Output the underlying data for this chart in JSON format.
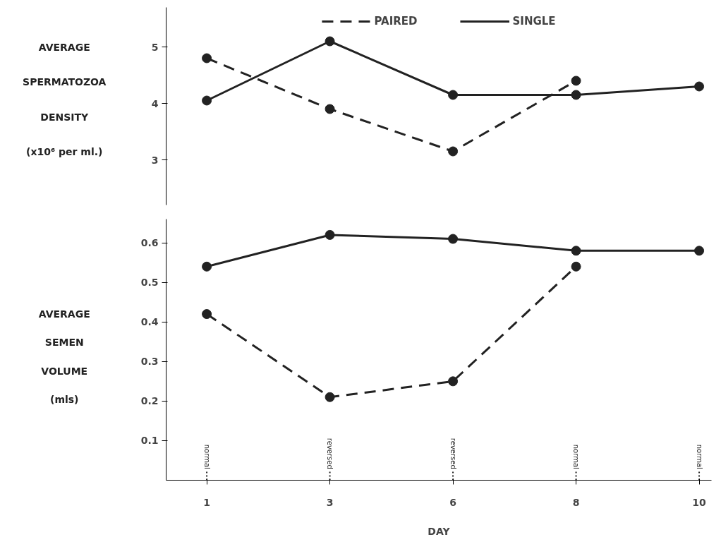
{
  "chart_data": [
    {
      "type": "line",
      "ylabel": "AVERAGE\nSPERMATOZOA\nDENSITY\n(x10⁶ per ml.)",
      "categories": [
        "1",
        "3",
        "6",
        "8",
        "10"
      ],
      "ylim": [
        2.2,
        5.7
      ],
      "yticks": [
        3,
        4,
        5
      ],
      "tick_labels": "y",
      "legend": "top",
      "marker": "circle",
      "series": [
        {
          "name": "PAIRED",
          "color": "#222222",
          "line_style": "dashed",
          "values": [
            4.8,
            3.9,
            3.15,
            4.4,
            null
          ]
        },
        {
          "name": "SINGLE",
          "color": "#222222",
          "line_style": "solid",
          "values": [
            4.05,
            5.1,
            4.15,
            4.15,
            4.3
          ]
        }
      ]
    },
    {
      "type": "line",
      "xlabel": "DAY",
      "ylabel": "AVERAGE\nSEMEN\nVOLUME\n(mls)",
      "categories": [
        "1",
        "3",
        "6",
        "8",
        "10"
      ],
      "ylim": [
        0,
        0.66
      ],
      "yticks": [
        0.1,
        0.2,
        0.3,
        0.4,
        0.5,
        0.6
      ],
      "marker": "circle",
      "series": [
        {
          "color": "#222222",
          "line_style": "dashed",
          "values": [
            0.42,
            0.21,
            0.25,
            0.54,
            null
          ]
        },
        {
          "color": "#222222",
          "line_style": "solid",
          "values": [
            0.54,
            0.62,
            0.61,
            0.58,
            0.58
          ]
        }
      ],
      "ref_lines": [
        {
          "axis": "x",
          "value": "1",
          "label": "normal",
          "line_style": "dotted"
        },
        {
          "axis": "x",
          "value": "3",
          "label": "reversed",
          "line_style": "dotted"
        },
        {
          "axis": "x",
          "value": "6",
          "label": "reversed",
          "line_style": "dotted"
        },
        {
          "axis": "x",
          "value": "8",
          "label": "normal",
          "line_style": "dotted"
        },
        {
          "axis": "x",
          "value": "10",
          "label": "normal",
          "line_style": "dotted"
        }
      ]
    }
  ]
}
